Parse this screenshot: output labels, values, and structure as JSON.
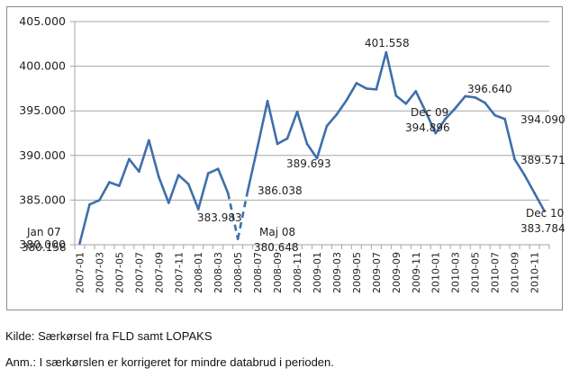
{
  "chart_data": {
    "type": "line",
    "title": "",
    "xlabel": "",
    "ylabel": "",
    "ylim": [
      380000,
      405000
    ],
    "yticks": [
      380000,
      385000,
      390000,
      395000,
      400000,
      405000
    ],
    "ytick_labels": [
      "380.000",
      "385.000",
      "390.000",
      "395.000",
      "400.000",
      "405.000"
    ],
    "grid": true,
    "legend": "none",
    "series_color": "#3f6fab",
    "x": [
      "2007-01",
      "2007-02",
      "2007-03",
      "2007-04",
      "2007-05",
      "2007-06",
      "2007-07",
      "2007-08",
      "2007-09",
      "2007-10",
      "2007-11",
      "2007-12",
      "2008-01",
      "2008-02",
      "2008-03",
      "2008-04",
      "2008-05",
      "2008-06",
      "2008-07",
      "2008-08",
      "2008-09",
      "2008-10",
      "2008-11",
      "2008-12",
      "2009-01",
      "2009-02",
      "2009-03",
      "2009-04",
      "2009-05",
      "2009-06",
      "2009-07",
      "2009-08",
      "2009-09",
      "2009-10",
      "2009-11",
      "2009-12",
      "2010-01",
      "2010-02",
      "2010-03",
      "2010-04",
      "2010-05",
      "2010-06",
      "2010-07",
      "2010-08",
      "2010-09",
      "2010-10",
      "2010-11",
      "2010-12"
    ],
    "xtick_labels": [
      "2007-01",
      "2007-03",
      "2007-05",
      "2007-07",
      "2007-09",
      "2007-11",
      "2008-01",
      "2008-03",
      "2008-05",
      "2008-07",
      "2008-09",
      "2008-11",
      "2009-01",
      "2009-03",
      "2009-05",
      "2009-07",
      "2009-09",
      "2009-11",
      "2010-01",
      "2010-03",
      "2010-05",
      "2010-07",
      "2010-09",
      "2010-11"
    ],
    "series": [
      {
        "name": "",
        "values": [
          380158,
          384500,
          385000,
          387000,
          386600,
          389600,
          388200,
          391700,
          387600,
          384700,
          387800,
          386800,
          383983,
          388000,
          388500,
          385800,
          380648,
          386038,
          391000,
          396100,
          391300,
          391900,
          394900,
          391300,
          389693,
          393300,
          394600,
          396200,
          398100,
          397500,
          397400,
          401558,
          396700,
          395800,
          397200,
          394896,
          392500,
          394100,
          395300,
          396640,
          396500,
          395900,
          394500,
          394090,
          389571,
          387800,
          385800,
          383784
        ],
        "dashed_segments": [
          [
            15,
            16
          ],
          [
            16,
            17
          ]
        ]
      }
    ],
    "annotations": [
      {
        "index": 0,
        "lines": [
          "Jan 07",
          "380.158"
        ]
      },
      {
        "index": 12,
        "lines": [
          "383.983"
        ]
      },
      {
        "index": 16,
        "lines": [
          "Maj 08",
          "380.648"
        ]
      },
      {
        "index": 17,
        "lines": [
          "386.038"
        ]
      },
      {
        "index": 24,
        "lines": [
          "389.693"
        ]
      },
      {
        "index": 31,
        "lines": [
          "401.558"
        ]
      },
      {
        "index": 35,
        "lines": [
          "Dec 09",
          "394.896"
        ]
      },
      {
        "index": 39,
        "lines": [
          "396.640"
        ]
      },
      {
        "index": 43,
        "lines": [
          "394.090"
        ]
      },
      {
        "index": 44,
        "lines": [
          "389.571"
        ]
      },
      {
        "index": 47,
        "lines": [
          "Dec 10",
          "383.784"
        ]
      }
    ]
  },
  "notes": {
    "source": "Kilde: Særkørsel fra FLD samt LOPAKS",
    "remark": "Anm.: I særkørslen er korrigeret for mindre databrud i perioden."
  }
}
